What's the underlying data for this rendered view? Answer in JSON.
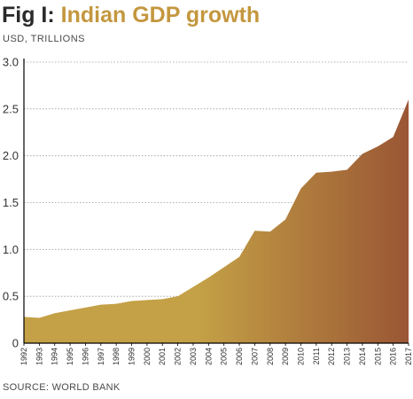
{
  "header": {
    "title_prefix": "Fig I:",
    "title_main": "Indian GDP growth",
    "subtitle": "USD, TRILLIONS"
  },
  "footer": {
    "source": "SOURCE: WORLD BANK"
  },
  "colors": {
    "area_light": "#c4a146",
    "area_dark": "#9a5634",
    "grid": "#9a9a9a",
    "axis": "#000000",
    "title_accent": "#c4973f"
  },
  "chart_data": {
    "type": "area",
    "title": "Indian GDP growth",
    "ylabel": "USD, TRILLIONS",
    "xlabel": "",
    "ylim": [
      0,
      3.0
    ],
    "yticks": [
      "0",
      "0.5",
      "1.0",
      "1.5",
      "2.0",
      "2.5",
      "3.0"
    ],
    "grid": "horizontal dotted",
    "legend": "none",
    "x": [
      "1992",
      "1993",
      "1994",
      "1995",
      "1996",
      "1997",
      "1998",
      "1999",
      "2000",
      "2001",
      "2002",
      "2003",
      "2004",
      "2005",
      "2006",
      "2007",
      "2008",
      "2009",
      "2010",
      "2011",
      "2012",
      "2013",
      "2014",
      "2015",
      "2016",
      "2017"
    ],
    "series": [
      {
        "values": [
          0.28,
          0.27,
          0.32,
          0.35,
          0.38,
          0.41,
          0.42,
          0.45,
          0.46,
          0.47,
          0.5,
          0.6,
          0.7,
          0.81,
          0.92,
          1.2,
          1.19,
          1.32,
          1.65,
          1.82,
          1.83,
          1.85,
          2.02,
          2.1,
          2.2,
          2.6
        ]
      }
    ]
  }
}
